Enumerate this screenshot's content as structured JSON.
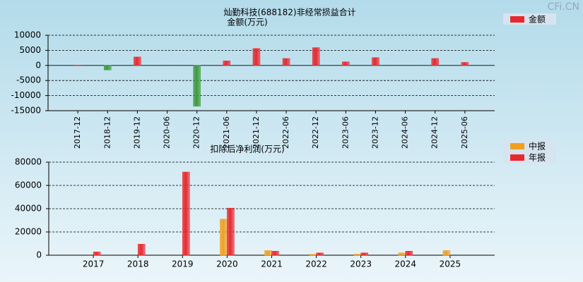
{
  "watermark": "CFi.CN",
  "chart_data": [
    {
      "type": "bar",
      "title": "灿勤科技(688182)非经常损益合计",
      "subtitle": "金额(万元)",
      "categories": [
        "2017-12",
        "2018-12",
        "2019-12",
        "2020-06",
        "2020-12",
        "2021-06",
        "2021-12",
        "2022-06",
        "2022-12",
        "2023-06",
        "2023-12",
        "2024-06",
        "2024-12",
        "2025-06"
      ],
      "series": [
        {
          "name": "金额",
          "color": "#e8282d",
          "negative_color": "#3c9a3c",
          "values": [
            100,
            -1500,
            2800,
            null,
            -13500,
            1500,
            5600,
            2300,
            5900,
            1200,
            2600,
            null,
            2300,
            1000
          ]
        }
      ],
      "ylim": [
        -15000,
        10000
      ],
      "yticks": [
        -15000,
        -10000,
        -5000,
        0,
        5000,
        10000
      ],
      "grid": true,
      "rotate_x_labels": true
    },
    {
      "type": "bar",
      "title": "扣除后净利润(万元)",
      "categories": [
        "2017",
        "2018",
        "2019",
        "2020",
        "2021",
        "2022",
        "2023",
        "2024",
        "2025"
      ],
      "series": [
        {
          "name": "中报",
          "color": "#f0a020",
          "values": [
            null,
            null,
            null,
            31000,
            4000,
            800,
            900,
            2000,
            4000
          ]
        },
        {
          "name": "年报",
          "color": "#e8282d",
          "values": [
            2800,
            9500,
            71500,
            40500,
            3500,
            2000,
            2000,
            3500,
            null
          ]
        }
      ],
      "ylim": [
        0,
        80000
      ],
      "yticks": [
        0,
        20000,
        40000,
        60000,
        80000
      ],
      "grid": true,
      "rotate_x_labels": false
    }
  ]
}
